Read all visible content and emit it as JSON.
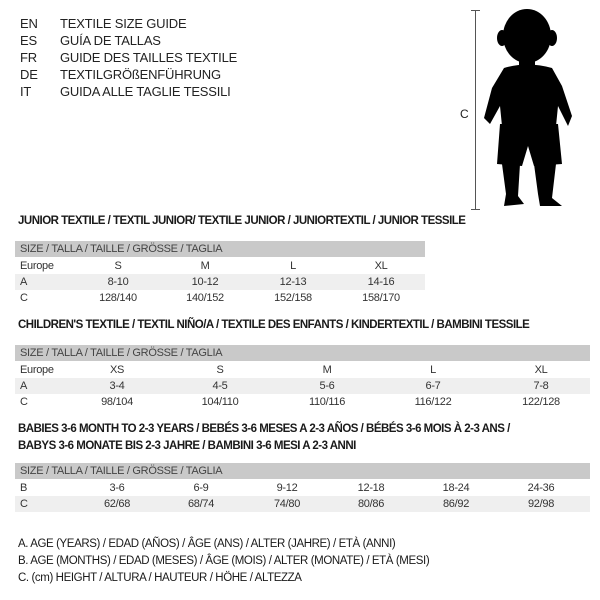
{
  "languages": [
    {
      "code": "EN",
      "name": "TEXTILE SIZE GUIDE"
    },
    {
      "code": "ES",
      "name": "GUÍA DE TALLAS"
    },
    {
      "code": "FR",
      "name": "GUIDE DES TAILLES TEXTILE"
    },
    {
      "code": "DE",
      "name": "TEXTILGRÖßENFÜHRUNG"
    },
    {
      "code": "IT",
      "name": "GUIDA ALLE TAGLIE TESSILI"
    }
  ],
  "figure": {
    "measure_label": "C",
    "icon": "child-silhouette"
  },
  "size_header": "SIZE / TALLA / TAILLE / GRÖSSE / TAGLIA",
  "junior": {
    "title": "JUNIOR TEXTILE / TEXTIL JUNIOR/ TEXTILE JUNIOR / JUNIORTEXTIL / JUNIOR TESSILE",
    "rows": [
      {
        "label": "Europe",
        "values": [
          "S",
          "M",
          "L",
          "XL"
        ]
      },
      {
        "label": "A",
        "values": [
          "8-10",
          "10-12",
          "12-13",
          "14-16"
        ]
      },
      {
        "label": "C",
        "values": [
          "128/140",
          "140/152",
          "152/158",
          "158/170"
        ]
      }
    ]
  },
  "children": {
    "title": "CHILDREN'S TEXTILE / TEXTIL NIÑO/A / TEXTILE DES ENFANTS / KINDERTEXTIL / BAMBINI TESSILE",
    "rows": [
      {
        "label": "Europe",
        "values": [
          "XS",
          "S",
          "M",
          "L",
          "XL"
        ]
      },
      {
        "label": "A",
        "values": [
          "3-4",
          "4-5",
          "5-6",
          "6-7",
          "7-8"
        ]
      },
      {
        "label": "C",
        "values": [
          "98/104",
          "104/110",
          "110/116",
          "116/122",
          "122/128"
        ]
      }
    ]
  },
  "babies": {
    "title_line1": "BABIES 3-6 MONTH TO 2-3 YEARS / BEBÉS 3-6 MESES A 2-3 AÑOS / BÉBÉS 3-6 MOIS À 2-3 ANS /",
    "title_line2": "BABYS 3-6 MONATE BIS 2-3 JAHRE / BAMBINI 3-6 MESI A 2-3 ANNI",
    "rows": [
      {
        "label": "B",
        "values": [
          "3-6",
          "6-9",
          "9-12",
          "12-18",
          "18-24",
          "24-36"
        ]
      },
      {
        "label": "C",
        "values": [
          "62/68",
          "68/74",
          "74/80",
          "80/86",
          "86/92",
          "92/98"
        ]
      }
    ]
  },
  "legend": [
    "A. AGE (YEARS) / EDAD (AÑOS) / ÂGE (ANS) / ALTER (JAHRE) / ETÀ (ANNI)",
    "B. AGE (MONTHS) / EDAD (MESES) / ÂGE (MOIS) / ALTER (MONATE) / ETÀ (MESI)",
    "C. (cm) HEIGHT / ALTURA / HAUTEUR / HÖHE / ALTEZZA"
  ]
}
